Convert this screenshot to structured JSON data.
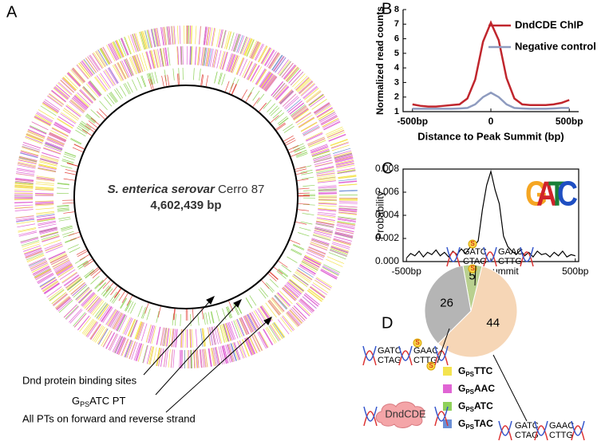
{
  "panels": [
    "A",
    "B",
    "C",
    "D"
  ],
  "genome": {
    "name_italic": "S. enterica serovar",
    "strain": "Cerro 87",
    "size": "4,602,439 bp",
    "annotations": [
      {
        "text": "Dnd protein binding sites"
      },
      {
        "g": "G",
        "sub": "PS",
        "rest": "ATC PT"
      },
      {
        "text": "All PTs on forward and reverse strand"
      }
    ],
    "legend": [
      {
        "g": "G",
        "sub": "PS",
        "rest": "TTC",
        "color": "#f4e34f"
      },
      {
        "g": "G",
        "sub": "PS",
        "rest": "AAC",
        "color": "#e064d4"
      },
      {
        "g": "G",
        "sub": "PS",
        "rest": "ATC",
        "color": "#8fd15a"
      },
      {
        "g": "G",
        "sub": "PS",
        "rest": "TAC",
        "color": "#6a8fd6"
      }
    ]
  },
  "chart_data": [
    {
      "type": "line",
      "xlabel": "Distance to Peak Summit (bp)",
      "ylabel": "Normalized read counts",
      "x": [
        -500,
        -450,
        -400,
        -350,
        -300,
        -250,
        -200,
        -150,
        -100,
        -50,
        0,
        50,
        100,
        150,
        200,
        250,
        300,
        350,
        400,
        450,
        500
      ],
      "series": [
        {
          "name": "DndCDE ChIP",
          "color": "#c0262d",
          "values": [
            1.5,
            1.4,
            1.35,
            1.35,
            1.4,
            1.45,
            1.5,
            1.9,
            3.2,
            5.8,
            7.1,
            5.9,
            3.3,
            1.9,
            1.5,
            1.45,
            1.45,
            1.45,
            1.5,
            1.6,
            1.8
          ]
        },
        {
          "name": "Negative control",
          "color": "#8e9bbf",
          "values": [
            1.2,
            1.2,
            1.2,
            1.2,
            1.2,
            1.2,
            1.22,
            1.25,
            1.5,
            2.0,
            2.3,
            2.0,
            1.5,
            1.25,
            1.22,
            1.2,
            1.2,
            1.2,
            1.22,
            1.25,
            1.25
          ]
        }
      ],
      "xlim": [
        -560,
        560
      ],
      "ylim": [
        1,
        8
      ],
      "xticks": [
        {
          "value": -500,
          "label": "-500bp"
        },
        0,
        {
          "value": 500,
          "label": "500bp"
        }
      ],
      "yticks": [
        1,
        2,
        3,
        4,
        5,
        6,
        7,
        8
      ]
    },
    {
      "type": "line",
      "ylabel": "Probability",
      "x": [
        -500,
        -475,
        -450,
        -425,
        -400,
        -375,
        -350,
        -325,
        -300,
        -275,
        -250,
        -225,
        -200,
        -175,
        -150,
        -125,
        -100,
        -75,
        -50,
        -25,
        0,
        25,
        50,
        75,
        100,
        125,
        150,
        175,
        200,
        225,
        250,
        275,
        300,
        325,
        350,
        375,
        400,
        425,
        450,
        475,
        500
      ],
      "series": [
        {
          "name": null,
          "color": "#000000",
          "values": [
            0.0003,
            0.0007,
            0.0005,
            0.0009,
            0.0004,
            0.0008,
            0.0006,
            0.001,
            0.0005,
            0.0008,
            0.0004,
            0.0009,
            0.0006,
            0.0011,
            0.0007,
            0.0012,
            0.0013,
            0.0018,
            0.0045,
            0.0066,
            0.0078,
            0.0062,
            0.005,
            0.0022,
            0.0013,
            0.0009,
            0.0006,
            0.001,
            0.0005,
            0.0008,
            0.0004,
            0.0009,
            0.0006,
            0.0007,
            0.0004,
            0.0008,
            0.0005,
            0.0009,
            0.0004,
            0.0006,
            0.0005
          ]
        }
      ],
      "xlim": [
        -520,
        520
      ],
      "ylim": [
        0,
        0.008
      ],
      "xticks": [
        {
          "value": -500,
          "label": "-500bp"
        },
        {
          "value": 0,
          "label": "Peak summit"
        },
        {
          "value": 500,
          "label": "500bp"
        }
      ],
      "yticks": [
        {
          "value": 0,
          "label": "0.000"
        },
        0.002,
        0.004,
        0.006,
        0.008
      ],
      "logo": [
        "G",
        "A",
        "T",
        "C"
      ]
    },
    {
      "type": "pie",
      "values": [
        5,
        44,
        26
      ],
      "colors": [
        "#b9d08f",
        "#f6d6b6",
        "#b5b5b5"
      ]
    }
  ],
  "panel_d": {
    "seq_top": "GATC",
    "seq_bottom": "CTAG",
    "seq_top2": "GAAC",
    "seq_bottom2": "CTTG",
    "s": "S",
    "protein": "DndCDE"
  }
}
